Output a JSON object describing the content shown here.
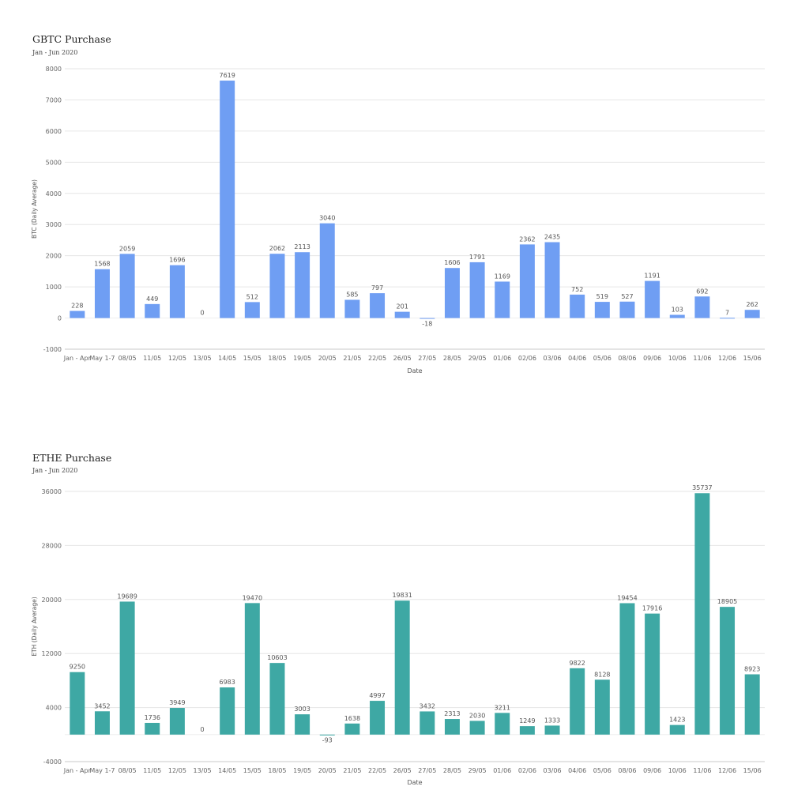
{
  "chart_data": [
    {
      "type": "bar",
      "title": "GBTC Purchase",
      "subtitle": "Jan - Jun 2020",
      "xlabel": "Date",
      "ylabel": "BTC (Daily Average)",
      "ylim": [
        -1000,
        8000
      ],
      "yticks": [
        -1000,
        0,
        1000,
        2000,
        3000,
        4000,
        5000,
        6000,
        7000,
        8000
      ],
      "grid": true,
      "color": "#6f9ef3",
      "categories": [
        "Jan - Apr",
        "May 1-7",
        "08/05",
        "11/05",
        "12/05",
        "13/05",
        "14/05",
        "15/05",
        "18/05",
        "19/05",
        "20/05",
        "21/05",
        "22/05",
        "26/05",
        "27/05",
        "28/05",
        "29/05",
        "01/06",
        "02/06",
        "03/06",
        "04/06",
        "05/06",
        "08/06",
        "09/06",
        "10/06",
        "11/06",
        "12/06",
        "15/06"
      ],
      "values": [
        228,
        1568,
        2059,
        449,
        1696,
        0,
        7619,
        512,
        2062,
        2113,
        3040,
        585,
        797,
        201,
        -18,
        1606,
        1791,
        1169,
        2362,
        2435,
        752,
        519,
        527,
        1191,
        103,
        692,
        7,
        262
      ]
    },
    {
      "type": "bar",
      "title": "ETHE Purchase",
      "subtitle": "Jan - Jun 2020",
      "xlabel": "Date",
      "ylabel": "ETH (Daily Average)",
      "ylim": [
        -4000,
        36000
      ],
      "yticks": [
        -4000,
        4000,
        12000,
        20000,
        28000,
        36000
      ],
      "grid": true,
      "color": "#3ea8a4",
      "categories": [
        "Jan - Apr",
        "May 1-7",
        "08/05",
        "11/05",
        "12/05",
        "13/05",
        "14/05",
        "15/05",
        "18/05",
        "19/05",
        "20/05",
        "21/05",
        "22/05",
        "26/05",
        "27/05",
        "28/05",
        "29/05",
        "01/06",
        "02/06",
        "03/06",
        "04/06",
        "05/06",
        "08/06",
        "09/06",
        "10/06",
        "11/06",
        "12/06",
        "15/06"
      ],
      "values": [
        9250,
        3452,
        19689,
        1736,
        3949,
        0,
        6983,
        19470,
        10603,
        3003,
        -93,
        1638,
        4997,
        19831,
        3432,
        2313,
        2030,
        3211,
        1249,
        1333,
        9822,
        8128,
        19454,
        17916,
        1423,
        35737,
        18905,
        8923
      ]
    }
  ]
}
